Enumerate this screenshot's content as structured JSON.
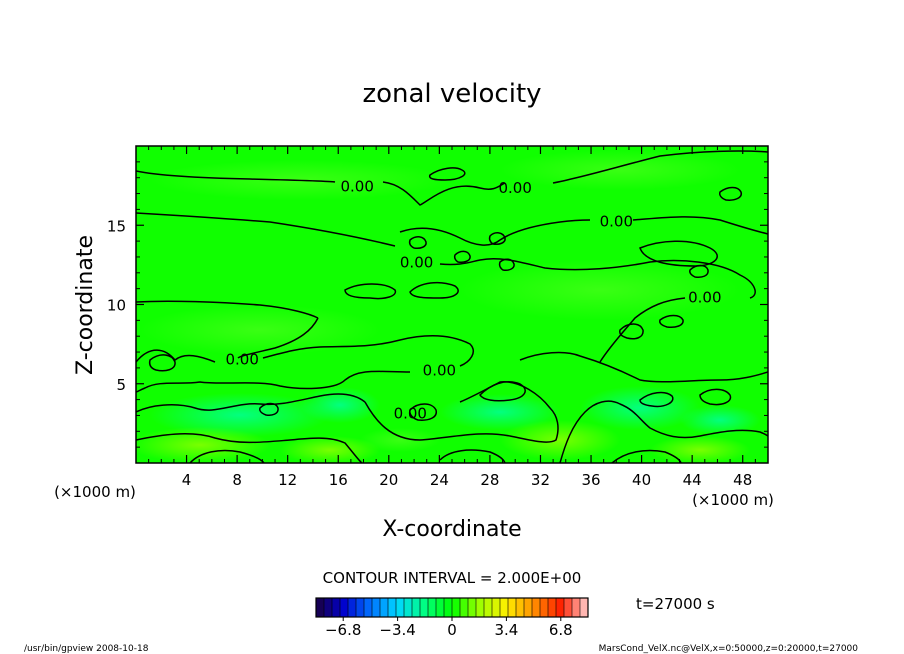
{
  "chart_data": {
    "type": "heatmap",
    "title": "zonal velocity",
    "xlabel": "X-coordinate",
    "ylabel": "Z-coordinate",
    "xlim": [
      0,
      50
    ],
    "ylim": [
      0,
      20
    ],
    "x_ticks": [
      "4",
      "8",
      "12",
      "16",
      "20",
      "24",
      "28",
      "32",
      "36",
      "40",
      "44",
      "48"
    ],
    "y_ticks": [
      "5",
      "10",
      "15"
    ],
    "x_unit": "(×1000 m)",
    "y_unit": "(×1000 m)",
    "contour_interval": "CONTOUR INTERVAL = 2.000E+00",
    "contour_label": "0.00",
    "colorbar": {
      "min": -8.5,
      "max": 8.5,
      "ticks": [
        "−6.8",
        "−3.4",
        "0",
        "3.4",
        "6.8"
      ],
      "colors": [
        "#1a0040",
        "#0000cc",
        "#0070ff",
        "#00d8ff",
        "#00ff80",
        "#00ff00",
        "#9cff00",
        "#fff000",
        "#ff9000",
        "#ff2000",
        "#ffd0d0"
      ]
    },
    "time_label": "t=27000 s",
    "footer_left": "/usr/bin/gpview  2008-10-18",
    "footer_right": "MarsCond_VelX.nc@VelX,x=0:50000,z=0:20000,t=27000",
    "contour_labels": [
      {
        "x": 17.5,
        "z": 17.5
      },
      {
        "x": 30.0,
        "z": 17.4
      },
      {
        "x": 38.0,
        "z": 15.3
      },
      {
        "x": 22.2,
        "z": 12.7
      },
      {
        "x": 45.0,
        "z": 10.5
      },
      {
        "x": 8.4,
        "z": 6.6
      },
      {
        "x": 24.0,
        "z": 5.9
      },
      {
        "x": 21.7,
        "z": 3.2
      }
    ]
  }
}
